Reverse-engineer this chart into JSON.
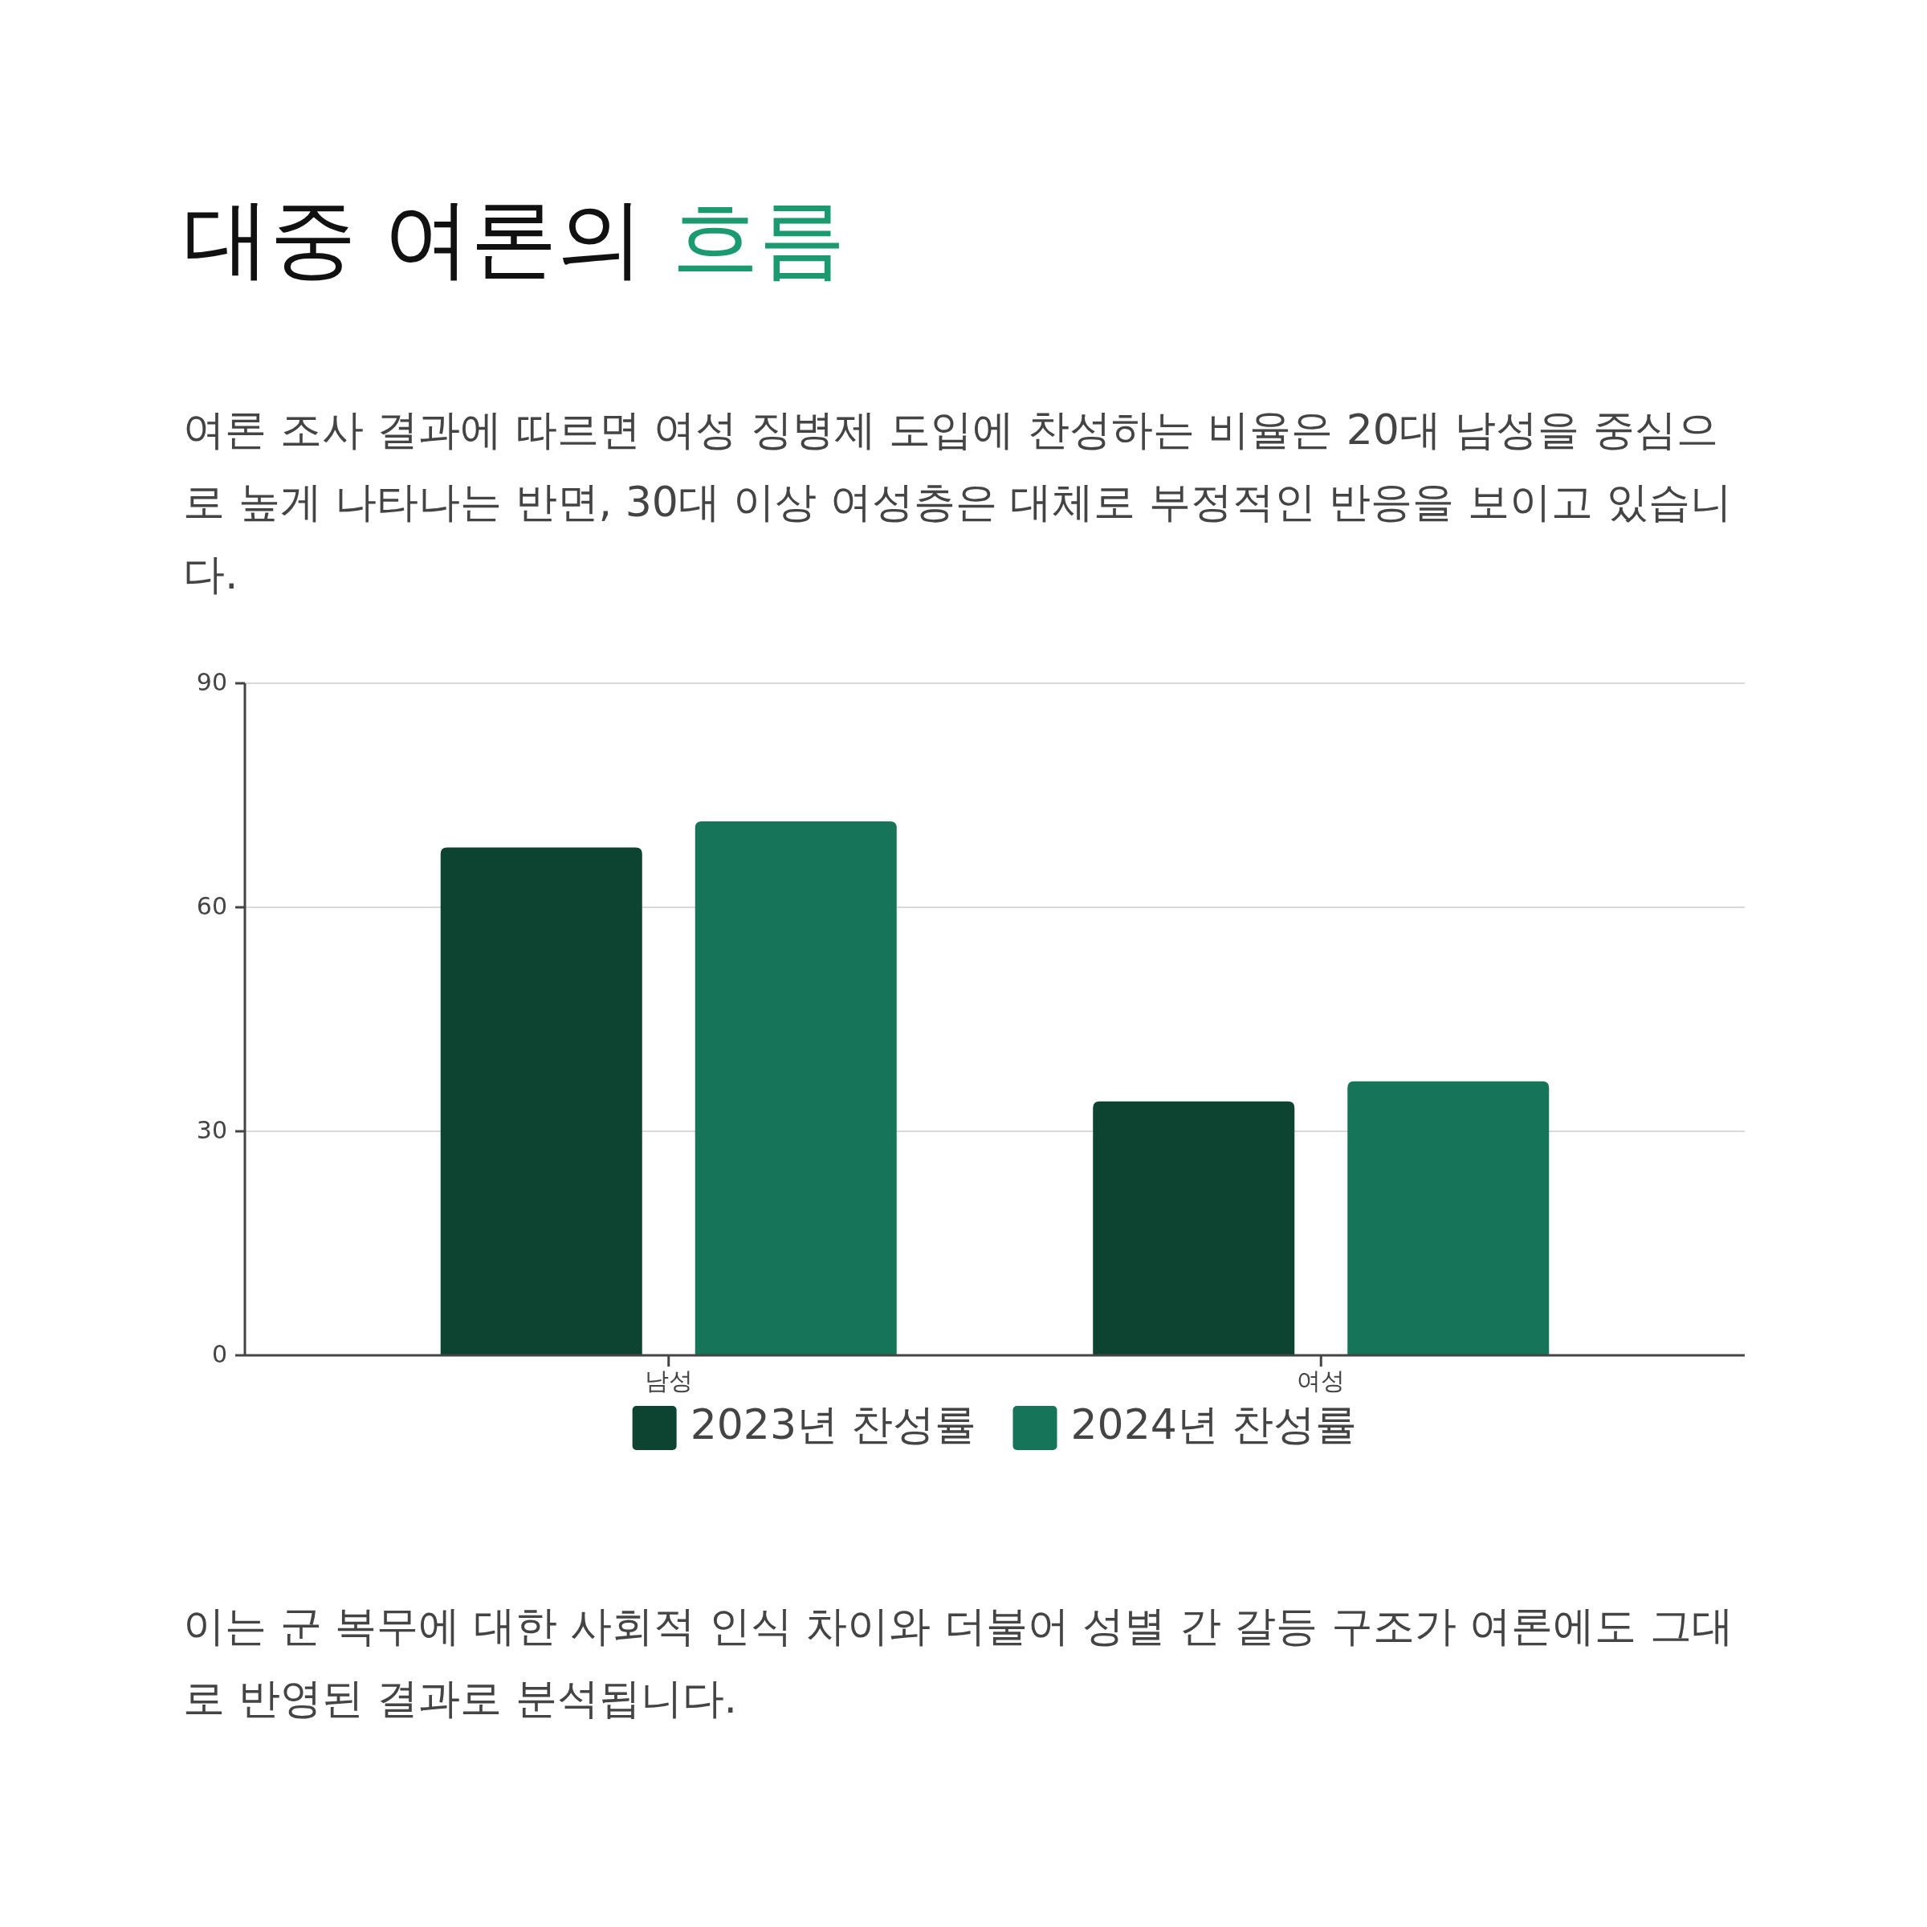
{
  "chart_data": {
    "type": "bar",
    "title": "대중 여론의 흐름",
    "subtitle": "여론 조사 결과에 따르면 여성 징병제 도입에 찬성하는 비율은 20대 남성을 중심으로 높게 나타나는 반면, 30대 이상 여성층은 대체로 부정적인 반응을 보이고 있습니다.",
    "categories": [
      "남성",
      "여성"
    ],
    "series": [
      {
        "name": "2023년 찬성률",
        "color": "#0d4331",
        "values": [
          68,
          34
        ]
      },
      {
        "name": "2024년 찬성률",
        "color": "#167458",
        "values": [
          71.5,
          36.7
        ]
      }
    ],
    "ylim": [
      0,
      90
    ],
    "yticks": [
      0,
      30,
      60,
      90
    ],
    "grid": "y",
    "legend": "bottom",
    "annotations": [
      "이는 군 복무에 대한 사회적 인식 차이와 더불어 성별 간 갈등 구조가 여론에도 그대로 반영된 결과로 분석됩니다."
    ]
  }
}
